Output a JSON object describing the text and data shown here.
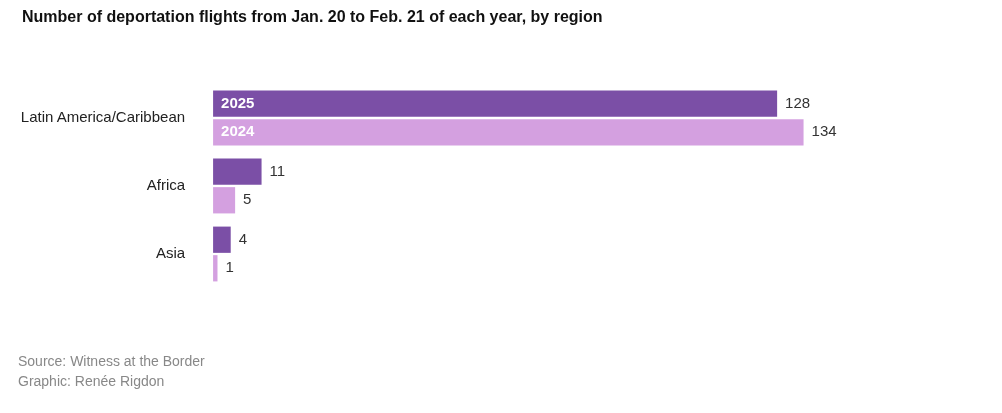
{
  "chart_data": {
    "type": "bar",
    "orientation": "horizontal",
    "title": "Number of deportation flights from Jan. 20 to Feb. 21 of each year, by region",
    "categories": [
      "Latin America/Caribbean",
      "Africa",
      "Asia"
    ],
    "series": [
      {
        "name": "2025",
        "color": "#7b4fa6",
        "values": [
          128,
          11,
          4
        ]
      },
      {
        "name": "2024",
        "color": "#d4a0e0",
        "values": [
          134,
          5,
          1
        ]
      }
    ],
    "data_labels": true,
    "legend": false,
    "grid": false,
    "tick_labels": "y",
    "annotations": [
      "Source: Witness at the Border",
      "Graphic: Renée Rigdon"
    ]
  }
}
